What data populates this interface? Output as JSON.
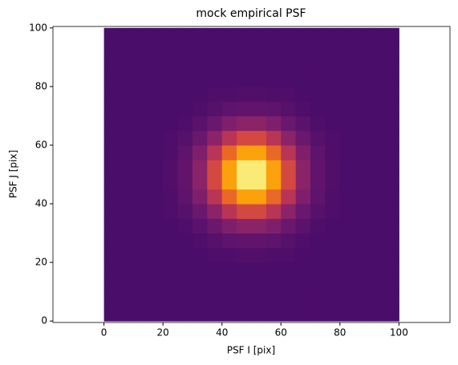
{
  "chart_data": {
    "type": "heatmap",
    "title": "mock empirical PSF",
    "xlabel": "PSF I [pix]",
    "ylabel": "PSF J [pix]",
    "colormap": "inferno",
    "xlim": [
      -17.3,
      117.3
    ],
    "ylim": [
      -0.5,
      100.5
    ],
    "xticks": [
      0,
      20,
      40,
      60,
      80,
      100
    ],
    "yticks": [
      0,
      20,
      40,
      60,
      80,
      100
    ],
    "xbins": [
      0,
      5,
      10,
      15,
      20,
      25,
      30,
      35,
      40,
      45,
      50,
      55,
      60,
      65,
      70,
      75,
      80,
      85,
      90,
      95,
      100
    ],
    "ybins": [
      0,
      5,
      10,
      15,
      20,
      25,
      30,
      35,
      40,
      45,
      50,
      55,
      60,
      65,
      70,
      75,
      80,
      85,
      90,
      95,
      100
    ],
    "z": [
      [
        0.22,
        0.22,
        0.22,
        0.22,
        0.22,
        0.22,
        0.22,
        0.22,
        0.22,
        0.22,
        0.22,
        0.22,
        0.22,
        0.22,
        0.22,
        0.22,
        0.22,
        0.22,
        0.22,
        0.22
      ],
      [
        0.22,
        0.22,
        0.22,
        0.22,
        0.22,
        0.22,
        0.22,
        0.22,
        0.22,
        0.22,
        0.22,
        0.22,
        0.22,
        0.22,
        0.22,
        0.22,
        0.22,
        0.22,
        0.22,
        0.22
      ],
      [
        0.22,
        0.22,
        0.22,
        0.22,
        0.22,
        0.22,
        0.22,
        0.22,
        0.22,
        0.22,
        0.22,
        0.22,
        0.22,
        0.22,
        0.22,
        0.22,
        0.22,
        0.22,
        0.22,
        0.22
      ],
      [
        0.22,
        0.22,
        0.22,
        0.22,
        0.22,
        0.22,
        0.22,
        0.22,
        0.22,
        0.22,
        0.22,
        0.22,
        0.22,
        0.22,
        0.22,
        0.22,
        0.22,
        0.22,
        0.22,
        0.22
      ],
      [
        0.22,
        0.22,
        0.22,
        0.22,
        0.22,
        0.22,
        0.22,
        0.23,
        0.23,
        0.24,
        0.24,
        0.23,
        0.23,
        0.22,
        0.22,
        0.22,
        0.22,
        0.22,
        0.22,
        0.22
      ],
      [
        0.22,
        0.22,
        0.22,
        0.22,
        0.22,
        0.22,
        0.23,
        0.25,
        0.27,
        0.28,
        0.28,
        0.27,
        0.25,
        0.23,
        0.22,
        0.22,
        0.22,
        0.22,
        0.22,
        0.22
      ],
      [
        0.22,
        0.22,
        0.22,
        0.22,
        0.22,
        0.23,
        0.26,
        0.3,
        0.35,
        0.38,
        0.38,
        0.35,
        0.3,
        0.26,
        0.23,
        0.22,
        0.22,
        0.22,
        0.22,
        0.22
      ],
      [
        0.22,
        0.22,
        0.22,
        0.22,
        0.23,
        0.25,
        0.3,
        0.38,
        0.49,
        0.57,
        0.57,
        0.49,
        0.38,
        0.3,
        0.25,
        0.23,
        0.22,
        0.22,
        0.22,
        0.22
      ],
      [
        0.22,
        0.22,
        0.22,
        0.22,
        0.23,
        0.27,
        0.35,
        0.49,
        0.66,
        0.79,
        0.79,
        0.66,
        0.49,
        0.35,
        0.27,
        0.23,
        0.22,
        0.22,
        0.22,
        0.22
      ],
      [
        0.22,
        0.22,
        0.22,
        0.22,
        0.24,
        0.28,
        0.38,
        0.57,
        0.79,
        0.95,
        0.95,
        0.79,
        0.57,
        0.38,
        0.28,
        0.24,
        0.22,
        0.22,
        0.22,
        0.22
      ],
      [
        0.22,
        0.22,
        0.22,
        0.22,
        0.24,
        0.28,
        0.38,
        0.57,
        0.79,
        0.95,
        0.95,
        0.79,
        0.57,
        0.38,
        0.28,
        0.24,
        0.22,
        0.22,
        0.22,
        0.22
      ],
      [
        0.22,
        0.22,
        0.22,
        0.22,
        0.23,
        0.27,
        0.35,
        0.49,
        0.66,
        0.79,
        0.79,
        0.66,
        0.49,
        0.35,
        0.27,
        0.23,
        0.22,
        0.22,
        0.22,
        0.22
      ],
      [
        0.22,
        0.22,
        0.22,
        0.22,
        0.23,
        0.25,
        0.3,
        0.38,
        0.49,
        0.57,
        0.57,
        0.49,
        0.38,
        0.3,
        0.25,
        0.23,
        0.22,
        0.22,
        0.22,
        0.22
      ],
      [
        0.22,
        0.22,
        0.22,
        0.22,
        0.22,
        0.23,
        0.26,
        0.3,
        0.35,
        0.38,
        0.38,
        0.35,
        0.3,
        0.26,
        0.23,
        0.22,
        0.22,
        0.22,
        0.22,
        0.22
      ],
      [
        0.22,
        0.22,
        0.22,
        0.22,
        0.22,
        0.22,
        0.23,
        0.25,
        0.27,
        0.28,
        0.28,
        0.27,
        0.25,
        0.23,
        0.22,
        0.22,
        0.22,
        0.22,
        0.22,
        0.22
      ],
      [
        0.22,
        0.22,
        0.22,
        0.22,
        0.22,
        0.22,
        0.22,
        0.23,
        0.23,
        0.24,
        0.24,
        0.23,
        0.23,
        0.22,
        0.22,
        0.22,
        0.22,
        0.22,
        0.22,
        0.22
      ],
      [
        0.22,
        0.22,
        0.22,
        0.22,
        0.22,
        0.22,
        0.22,
        0.22,
        0.22,
        0.22,
        0.22,
        0.22,
        0.22,
        0.22,
        0.22,
        0.22,
        0.22,
        0.22,
        0.22,
        0.22
      ],
      [
        0.22,
        0.22,
        0.22,
        0.22,
        0.22,
        0.22,
        0.22,
        0.22,
        0.22,
        0.22,
        0.22,
        0.22,
        0.22,
        0.22,
        0.22,
        0.22,
        0.22,
        0.22,
        0.22,
        0.22
      ],
      [
        0.22,
        0.22,
        0.22,
        0.22,
        0.22,
        0.22,
        0.22,
        0.22,
        0.22,
        0.22,
        0.22,
        0.22,
        0.22,
        0.22,
        0.22,
        0.22,
        0.22,
        0.22,
        0.22,
        0.22
      ],
      [
        0.22,
        0.22,
        0.22,
        0.22,
        0.22,
        0.22,
        0.22,
        0.22,
        0.22,
        0.22,
        0.22,
        0.22,
        0.22,
        0.22,
        0.22,
        0.22,
        0.22,
        0.22,
        0.22,
        0.22
      ]
    ]
  }
}
